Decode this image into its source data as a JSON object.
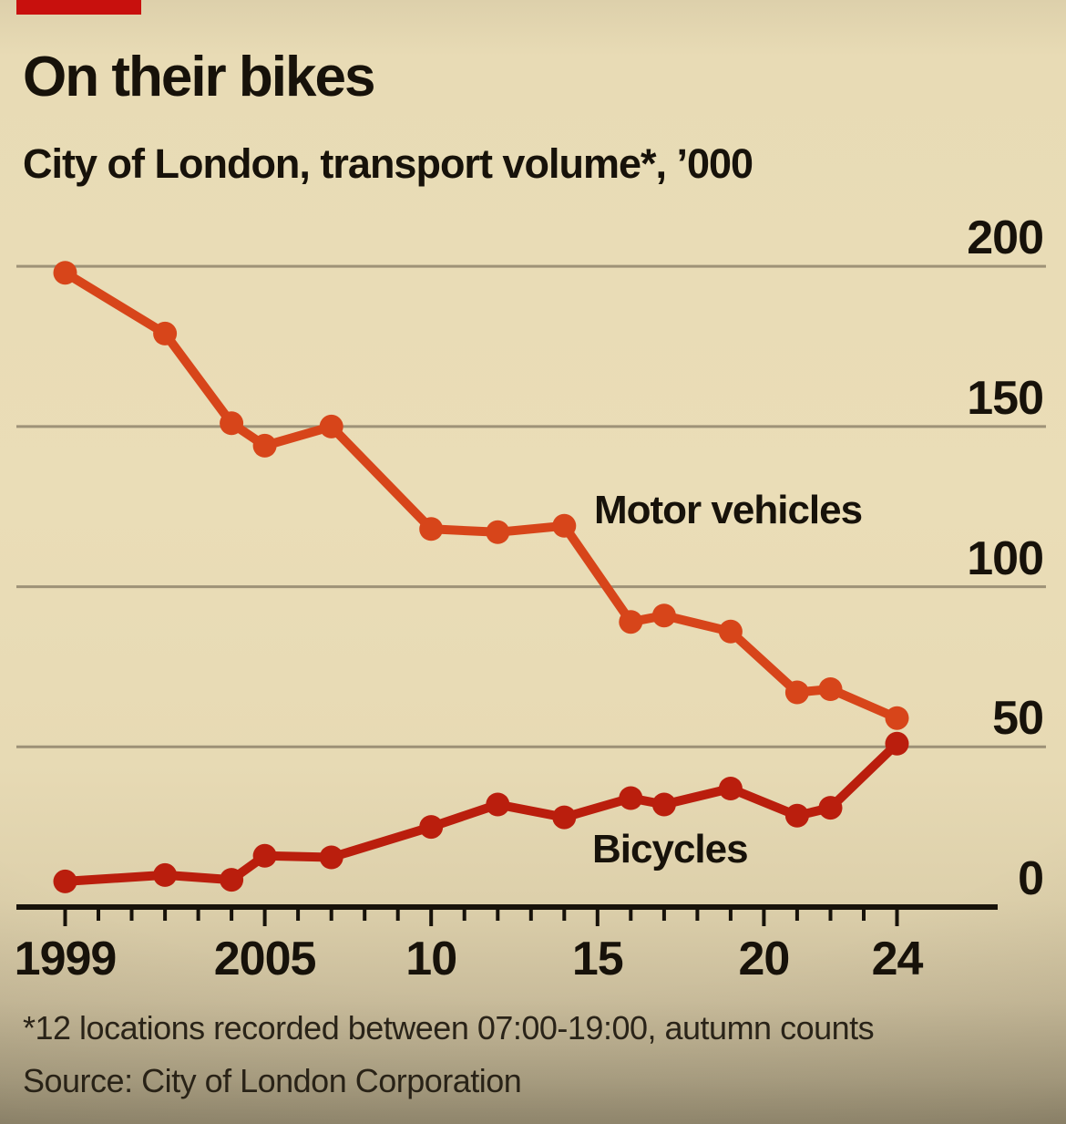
{
  "page": {
    "tab_color": "#c8100d",
    "background_color": "#e9dcb6",
    "text_color": "#17120a",
    "gridline_color": "#6f6450"
  },
  "chart_data": {
    "type": "line",
    "title": "On their bikes",
    "subtitle": "City of London, transport volume*, ’000",
    "xlabel": "",
    "ylabel": "",
    "xlim": [
      1999,
      2024
    ],
    "ylim": [
      0,
      200
    ],
    "yticks": [
      0,
      50,
      100,
      150,
      200
    ],
    "xticks": [
      {
        "year": 1999,
        "label": "1999"
      },
      {
        "year": 2005,
        "label": "2005"
      },
      {
        "year": 2010,
        "label": "10"
      },
      {
        "year": 2015,
        "label": "15"
      },
      {
        "year": 2020,
        "label": "20"
      },
      {
        "year": 2024,
        "label": "24"
      }
    ],
    "grid": "horizontal",
    "legend_position": "inline-labels",
    "series": [
      {
        "name": "Motor vehicles",
        "color": "#d7451a",
        "x": [
          1999,
          2002,
          2004,
          2005,
          2007,
          2010,
          2012,
          2014,
          2016,
          2017,
          2019,
          2021,
          2022,
          2024
        ],
        "values": [
          198,
          179,
          151,
          144,
          150,
          118,
          117,
          119,
          89,
          91,
          86,
          67,
          68,
          59
        ]
      },
      {
        "name": "Bicycles",
        "color": "#ba1e0d",
        "x": [
          1999,
          2002,
          2004,
          2005,
          2007,
          2010,
          2012,
          2014,
          2016,
          2017,
          2019,
          2021,
          2022,
          2024
        ],
        "values": [
          8,
          10,
          8.5,
          16,
          15.5,
          25,
          32,
          28,
          34,
          32,
          37,
          28.5,
          31,
          51
        ]
      }
    ],
    "footnote": "*12 locations recorded between 07:00-19:00, autumn counts",
    "source": "Source: City of London Corporation"
  }
}
